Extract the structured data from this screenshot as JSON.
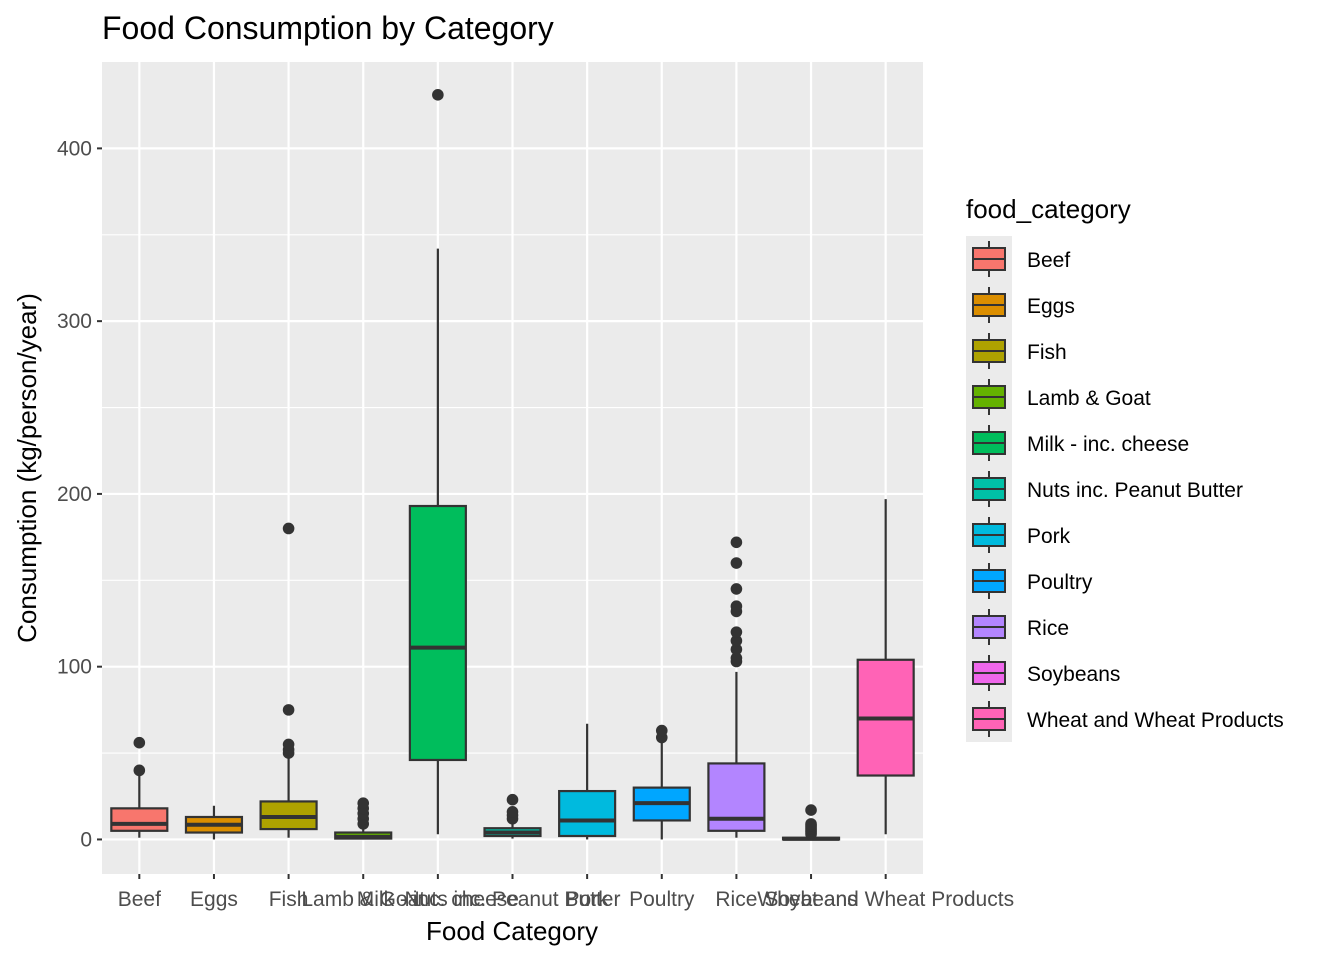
{
  "chart_data": {
    "type": "boxplot",
    "title": "Food Consumption by Category",
    "xlabel": "Food Category",
    "ylabel": "Consumption (kg/person/year)",
    "ylim": [
      -20,
      450
    ],
    "yticks": [
      0,
      100,
      200,
      300,
      400
    ],
    "grid": true,
    "legend_position": "right",
    "legend_title": "food_category",
    "categories": [
      "Beef",
      "Eggs",
      "Fish",
      "Lamb & Goat",
      "Milk - inc. cheese",
      "Nuts inc. Peanut Butter",
      "Pork",
      "Poultry",
      "Rice",
      "Soybeans",
      "Wheat and Wheat Products"
    ],
    "boxes": [
      {
        "name": "Beef",
        "color": "#F8766D",
        "whisker_low": 1,
        "q1": 5,
        "median": 9,
        "q3": 18,
        "whisker_high": 37,
        "outliers": [
          40,
          56
        ]
      },
      {
        "name": "Eggs",
        "color": "#DB8E00",
        "whisker_low": 0,
        "q1": 4,
        "median": 8.5,
        "q3": 13,
        "whisker_high": 19.5,
        "outliers": []
      },
      {
        "name": "Fish",
        "color": "#AEA200",
        "whisker_low": 1,
        "q1": 6,
        "median": 13,
        "q3": 22,
        "whisker_high": 47,
        "outliers": [
          50,
          52,
          55,
          75,
          180
        ]
      },
      {
        "name": "Lamb & Goat",
        "color": "#64B200",
        "whisker_low": 0,
        "q1": 0.5,
        "median": 1.5,
        "q3": 4,
        "whisker_high": 7,
        "outliers": [
          9,
          12,
          15,
          18,
          21
        ]
      },
      {
        "name": "Milk - inc. cheese",
        "color": "#00BD5C",
        "whisker_low": 3,
        "q1": 46,
        "median": 111,
        "q3": 193,
        "whisker_high": 342,
        "outliers": [
          431
        ]
      },
      {
        "name": "Nuts inc. Peanut Butter",
        "color": "#00C1A7",
        "whisker_low": 0.5,
        "q1": 2,
        "median": 4,
        "q3": 6.5,
        "whisker_high": 10,
        "outliers": [
          12,
          14,
          16,
          23
        ]
      },
      {
        "name": "Pork",
        "color": "#00BADE",
        "whisker_low": 0,
        "q1": 2,
        "median": 11,
        "q3": 28,
        "whisker_high": 67,
        "outliers": []
      },
      {
        "name": "Poultry",
        "color": "#00A6FF",
        "whisker_low": 0,
        "q1": 11,
        "median": 21,
        "q3": 30,
        "whisker_high": 56,
        "outliers": [
          59,
          63
        ]
      },
      {
        "name": "Rice",
        "color": "#B385FF",
        "whisker_low": 1,
        "q1": 5,
        "median": 12,
        "q3": 44,
        "whisker_high": 97,
        "outliers": [
          103,
          105,
          110,
          115,
          120,
          132,
          135,
          145,
          160,
          172
        ]
      },
      {
        "name": "Soybeans",
        "color": "#EF67EB",
        "whisker_low": 0,
        "q1": 0,
        "median": 0.3,
        "q3": 1,
        "whisker_high": 2,
        "outliers": [
          3,
          4,
          5,
          6,
          7,
          8,
          9,
          17
        ]
      },
      {
        "name": "Wheat and Wheat Products",
        "color": "#FF63B6",
        "whisker_low": 3,
        "q1": 37,
        "median": 70,
        "q3": 104,
        "whisker_high": 197,
        "outliers": []
      }
    ]
  }
}
